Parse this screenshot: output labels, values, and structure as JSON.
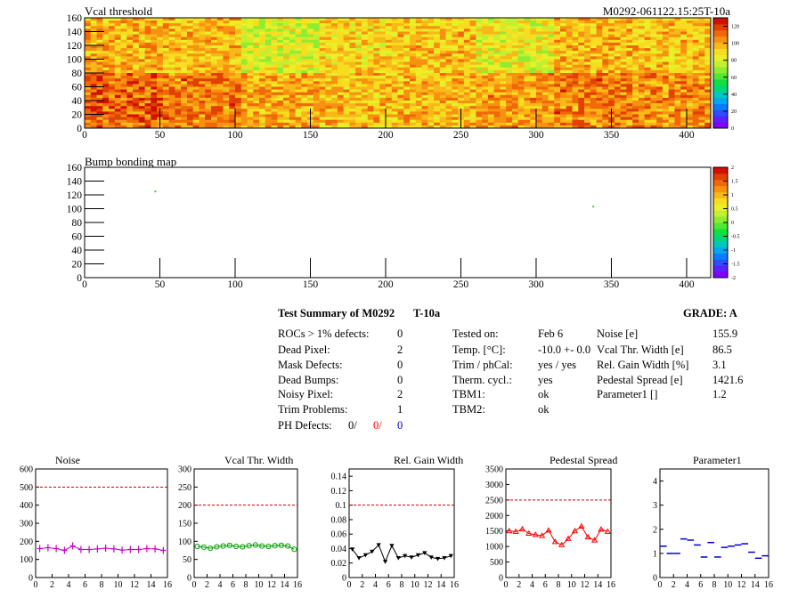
{
  "chart_data": [
    {
      "type": "heatmap",
      "title": "Vcal threshold",
      "id_label": "M0292-061122.15:25T-10a",
      "xlim": [
        0,
        416
      ],
      "ylim": [
        0,
        160
      ],
      "xticks": [
        0,
        50,
        100,
        150,
        200,
        250,
        300,
        350,
        400
      ],
      "yticks": [
        0,
        20,
        40,
        60,
        80,
        100,
        120,
        140,
        160
      ],
      "zlim": [
        0,
        130
      ],
      "zticks": [
        0,
        20,
        40,
        60,
        80,
        100,
        120
      ],
      "roc_mean_values_top": [
        98,
        96,
        80,
        92,
        95,
        84,
        97,
        95
      ],
      "roc_mean_values_bottom": [
        112,
        108,
        100,
        96,
        97,
        102,
        108,
        105
      ]
    },
    {
      "type": "heatmap",
      "title": "Bump bonding map",
      "xlim": [
        0,
        416
      ],
      "ylim": [
        0,
        160
      ],
      "xticks": [
        0,
        50,
        100,
        150,
        200,
        250,
        300,
        350,
        400
      ],
      "yticks": [
        0,
        20,
        40,
        60,
        80,
        100,
        120,
        140,
        160
      ],
      "zlim": [
        -2,
        2
      ],
      "zticks": [
        "-2",
        "-1.5",
        "-1",
        "-0.5",
        "0",
        "0.5",
        "1",
        "1.5",
        "2"
      ],
      "points": [
        {
          "x": 47,
          "y": 125
        },
        {
          "x": 338,
          "y": 103
        }
      ]
    },
    {
      "type": "scatter",
      "title": "Noise",
      "xlim": [
        0,
        16
      ],
      "ylim": [
        0,
        600
      ],
      "xticks": [
        0,
        2,
        4,
        6,
        8,
        10,
        12,
        14,
        16
      ],
      "yticks": [
        0,
        100,
        200,
        300,
        400,
        500,
        600
      ],
      "limit": 500,
      "marker": "cross",
      "color": "#cc00cc",
      "x": [
        0.5,
        1.5,
        2.5,
        3.5,
        4.5,
        5.5,
        6.5,
        7.5,
        8.5,
        9.5,
        10.5,
        11.5,
        12.5,
        13.5,
        14.5,
        15.5
      ],
      "values": [
        160,
        165,
        160,
        150,
        175,
        155,
        155,
        158,
        162,
        158,
        152,
        155,
        155,
        160,
        158,
        150
      ]
    },
    {
      "type": "line",
      "title": "Vcal Thr. Width",
      "xlim": [
        0,
        16
      ],
      "ylim": [
        0,
        300
      ],
      "xticks": [
        0,
        2,
        4,
        6,
        8,
        10,
        12,
        14,
        16
      ],
      "yticks": [
        0,
        50,
        100,
        150,
        200,
        250,
        300
      ],
      "limit": 200,
      "marker": "circle",
      "color": "#00a000",
      "x": [
        0.5,
        1.5,
        2.5,
        3.5,
        4.5,
        5.5,
        6.5,
        7.5,
        8.5,
        9.5,
        10.5,
        11.5,
        12.5,
        13.5,
        14.5,
        15.5
      ],
      "values": [
        86,
        84,
        81,
        85,
        87,
        89,
        86,
        85,
        88,
        90,
        87,
        86,
        88,
        89,
        87,
        78
      ]
    },
    {
      "type": "line",
      "title": "Rel. Gain Width",
      "xlim": [
        0,
        16
      ],
      "ylim": [
        0,
        0.15
      ],
      "xticks": [
        0,
        2,
        4,
        6,
        8,
        10,
        12,
        14,
        16
      ],
      "yticks": [
        "0",
        "0.02",
        "0.04",
        "0.06",
        "0.08",
        "0.1",
        "0.12",
        "0.14"
      ],
      "limit": 0.1,
      "marker": "triangle-down",
      "color": "#000000",
      "x": [
        0.5,
        1.5,
        2.5,
        3.5,
        4.5,
        5.5,
        6.5,
        7.5,
        8.5,
        9.5,
        10.5,
        11.5,
        12.5,
        13.5,
        14.5,
        15.5
      ],
      "values": [
        0.039,
        0.027,
        0.031,
        0.036,
        0.045,
        0.022,
        0.044,
        0.027,
        0.03,
        0.028,
        0.031,
        0.034,
        0.028,
        0.026,
        0.027,
        0.03
      ]
    },
    {
      "type": "line",
      "title": "Pedestal Spread",
      "xlim": [
        0,
        16
      ],
      "ylim": [
        0,
        3500
      ],
      "xticks": [
        0,
        2,
        4,
        6,
        8,
        10,
        12,
        14,
        16
      ],
      "yticks": [
        0,
        500,
        1000,
        1500,
        2000,
        2500,
        3000,
        3500
      ],
      "limit": 2500,
      "marker": "triangle-up",
      "color": "#ff0000",
      "x": [
        0.5,
        1.5,
        2.5,
        3.5,
        4.5,
        5.5,
        6.5,
        7.5,
        8.5,
        9.5,
        10.5,
        11.5,
        12.5,
        13.5,
        14.5,
        15.5
      ],
      "values": [
        1500,
        1480,
        1560,
        1420,
        1380,
        1350,
        1520,
        1150,
        1050,
        1250,
        1500,
        1650,
        1300,
        1200,
        1550,
        1480
      ]
    },
    {
      "type": "scatter",
      "title": "Parameter1",
      "xlim": [
        0,
        16
      ],
      "ylim": [
        0,
        4.5
      ],
      "xticks": [
        0,
        2,
        4,
        6,
        8,
        10,
        12,
        14,
        16
      ],
      "yticks": [
        0,
        1,
        2,
        3,
        4
      ],
      "marker": "hbar",
      "color": "#0000cc",
      "x": [
        0.5,
        1.5,
        2.5,
        3.5,
        4.5,
        5.5,
        6.5,
        7.5,
        8.5,
        9.5,
        10.5,
        11.5,
        12.5,
        13.5,
        14.5,
        15.5
      ],
      "values": [
        1.3,
        1.0,
        1.0,
        1.6,
        1.55,
        1.35,
        0.85,
        1.45,
        0.85,
        1.25,
        1.3,
        1.35,
        1.4,
        1.05,
        0.8,
        0.9
      ]
    }
  ],
  "summary": {
    "heading": "Test Summary of M0292",
    "temperature_tag": "T-10a",
    "grade": "GRADE:  A",
    "defects": [
      {
        "label": "ROCs > 1% defects:",
        "value": "0"
      },
      {
        "label": "Dead Pixel:",
        "value": "2"
      },
      {
        "label": "Mask Defects:",
        "value": "0"
      },
      {
        "label": "Dead Bumps:",
        "value": "0"
      },
      {
        "label": "Noisy Pixel:",
        "value": "2"
      },
      {
        "label": "Trim Problems:",
        "value": "1"
      }
    ],
    "ph_defects": {
      "label": "PH Defects:",
      "v1": "0/",
      "v2": "0/",
      "v3": "0"
    },
    "conditions": [
      {
        "label": "Tested on:",
        "value": "Feb 6"
      },
      {
        "label": "Temp. [°C]:",
        "value": "-10.0 +- 0.0"
      },
      {
        "label": "Trim / phCal:",
        "value": "yes / yes"
      },
      {
        "label": "Therm. cycl.:",
        "value": "yes"
      },
      {
        "label": "TBM1:",
        "value": "ok"
      },
      {
        "label": "TBM2:",
        "value": "ok"
      }
    ],
    "parameters": [
      {
        "label": "Noise [e]",
        "value": "155.9"
      },
      {
        "label": "Vcal Thr. Width [e]",
        "value": "86.5"
      },
      {
        "label": "Rel. Gain Width [%]",
        "value": "3.1"
      },
      {
        "label": "Pedestal Spread [e]",
        "value": "1421.6"
      },
      {
        "label": "Parameter1 []",
        "value": "1.2"
      }
    ]
  }
}
